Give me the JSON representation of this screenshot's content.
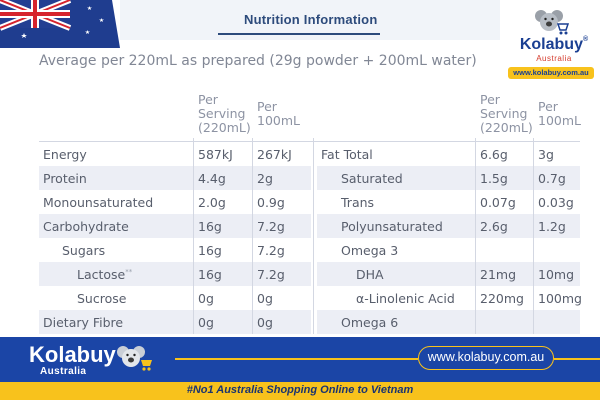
{
  "header": {
    "title": "Nutrition Information",
    "subtitle": "Average per 220mL as prepared (29g powder + 200mL water)"
  },
  "brand": {
    "name": "Kolabuy",
    "registered": "®",
    "sub": "Australia",
    "url": "www.kolabuy.com.au"
  },
  "table": {
    "col_per_serving": [
      "Per",
      "Serving",
      "(220mL)"
    ],
    "col_per_100": [
      "Per",
      "100mL"
    ],
    "left_rows": [
      {
        "name": "Energy",
        "serving": "587kJ",
        "per100": "267kJ"
      },
      {
        "name": "Protein",
        "serving": "4.4g",
        "per100": "2g"
      },
      {
        "name": "Monounsaturated",
        "serving": "2.0g",
        "per100": "0.9g"
      },
      {
        "name": "Carbohydrate",
        "serving": "16g",
        "per100": "7.2g"
      },
      {
        "name": "Sugars",
        "serving": "16g",
        "per100": "7.2g"
      },
      {
        "name": "Lactose",
        "note": "**",
        "serving": "16g",
        "per100": "7.2g"
      },
      {
        "name": "Sucrose",
        "serving": "0g",
        "per100": "0g"
      },
      {
        "name": "Dietary Fibre",
        "serving": "0g",
        "per100": "0g"
      }
    ],
    "right_rows": [
      {
        "name": "Fat Total",
        "serving": "6.6g",
        "per100": "3g"
      },
      {
        "name": "Saturated",
        "serving": "1.5g",
        "per100": "0.7g"
      },
      {
        "name": "Trans",
        "serving": "0.07g",
        "per100": "0.03g"
      },
      {
        "name": "Polyunsaturated",
        "serving": "2.6g",
        "per100": "1.2g"
      },
      {
        "name": "Omega 3",
        "serving": "",
        "per100": ""
      },
      {
        "name": "DHA",
        "serving": "21mg",
        "per100": "10mg"
      },
      {
        "name": "α-Linolenic Acid",
        "serving": "220mg",
        "per100": "100mg"
      },
      {
        "name": "Omega 6",
        "serving": "",
        "per100": ""
      }
    ]
  },
  "footer": {
    "brand_name": "Kolabuy",
    "brand_sub": "Australia",
    "url": "www.kolabuy.com.au",
    "tagline": "#No1 Australia Shopping Online to Vietnam"
  },
  "colors": {
    "title_blue": "#2d4b7c",
    "footer_blue": "#1b45a6",
    "accent_yellow": "#f8c21c",
    "row_shade": "#eceef5"
  }
}
